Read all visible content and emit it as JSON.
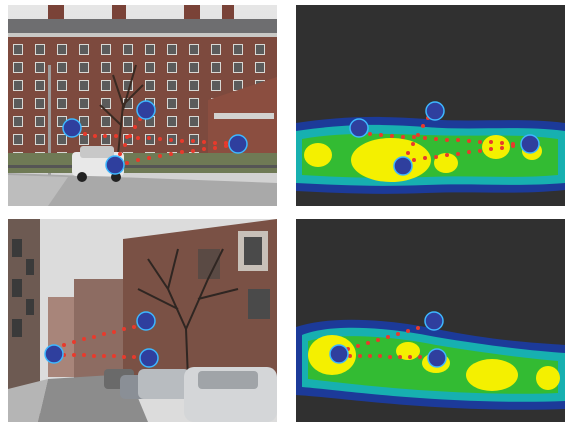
{
  "colors": {
    "marker_fill": "#2f3f9e",
    "marker_stroke": "#3db7ff",
    "link_dots": "#e83a2c",
    "heatmap_background": "#303030",
    "heatmap_cold": "#1c3a99",
    "heatmap_mid": "#17b0b0",
    "heatmap_warm": "#33bb33",
    "heatmap_hot": "#f4f000"
  },
  "panels": [
    {
      "name": "building-photo",
      "content": "photograph"
    },
    {
      "name": "building-saliency-map",
      "content": "heatmap"
    },
    {
      "name": "street-photo",
      "content": "photograph"
    },
    {
      "name": "street-saliency-map",
      "content": "heatmap"
    }
  ]
}
